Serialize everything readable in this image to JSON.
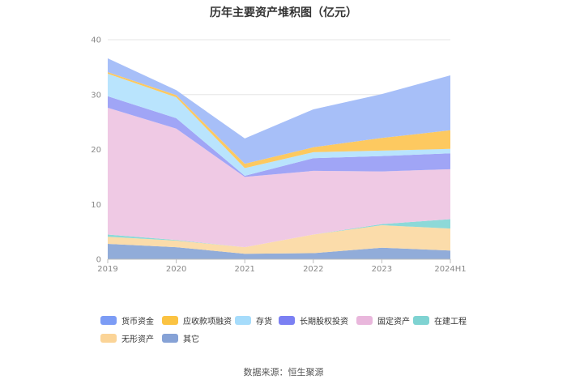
{
  "chart_data": {
    "type": "area",
    "stacked": true,
    "title": "历年主要资产堆积图（亿元）",
    "categories": [
      "2019",
      "2020",
      "2021",
      "2022",
      "2023",
      "2024H1"
    ],
    "y_ticks": [
      "0",
      "10",
      "20",
      "30",
      "40"
    ],
    "ylim": [
      0,
      40
    ],
    "grid": true,
    "legend_position": "bottom",
    "series": [
      {
        "name": "其它",
        "color": "#91acd9",
        "values": [
          2.8,
          2.2,
          1.0,
          1.1,
          2.1,
          1.6
        ]
      },
      {
        "name": "无形资产",
        "color": "#fbdcaa",
        "values": [
          1.3,
          1.2,
          1.2,
          3.4,
          4.1,
          4.0
        ]
      },
      {
        "name": "在建工程",
        "color": "#8dd9d8",
        "values": [
          0.4,
          0.1,
          0.0,
          0.0,
          0.2,
          1.7
        ]
      },
      {
        "name": "固定资产",
        "color": "#efc9e4",
        "values": [
          23.1,
          20.3,
          12.8,
          11.6,
          9.6,
          9.1
        ]
      },
      {
        "name": "长期股权投资",
        "color": "#a0a5f6",
        "values": [
          2.1,
          1.9,
          0.2,
          2.3,
          2.8,
          2.9
        ]
      },
      {
        "name": "存货",
        "color": "#b9e4fd",
        "values": [
          4.1,
          3.8,
          1.4,
          1.1,
          1.0,
          0.8
        ]
      },
      {
        "name": "应收款项融资",
        "color": "#fdc960",
        "values": [
          0.3,
          0.4,
          0.8,
          0.9,
          2.3,
          3.4
        ]
      },
      {
        "name": "货币资金",
        "color": "#a7bff8",
        "values": [
          2.5,
          0.9,
          4.6,
          6.9,
          8.0,
          10.0
        ]
      }
    ]
  },
  "legend": [
    {
      "name": "货币资金",
      "color": "#7c9cf5"
    },
    {
      "name": "应收款项融资",
      "color": "#fbc342"
    },
    {
      "name": "存货",
      "color": "#a6dcfb"
    },
    {
      "name": "长期股权投资",
      "color": "#7b80f3"
    },
    {
      "name": "固定资产",
      "color": "#e9b7dc"
    },
    {
      "name": "在建工程",
      "color": "#7fd3d2"
    },
    {
      "name": "无形资产",
      "color": "#fbd497"
    },
    {
      "name": "其它",
      "color": "#86a2d6"
    }
  ],
  "source": "数据来源：恒生聚源"
}
